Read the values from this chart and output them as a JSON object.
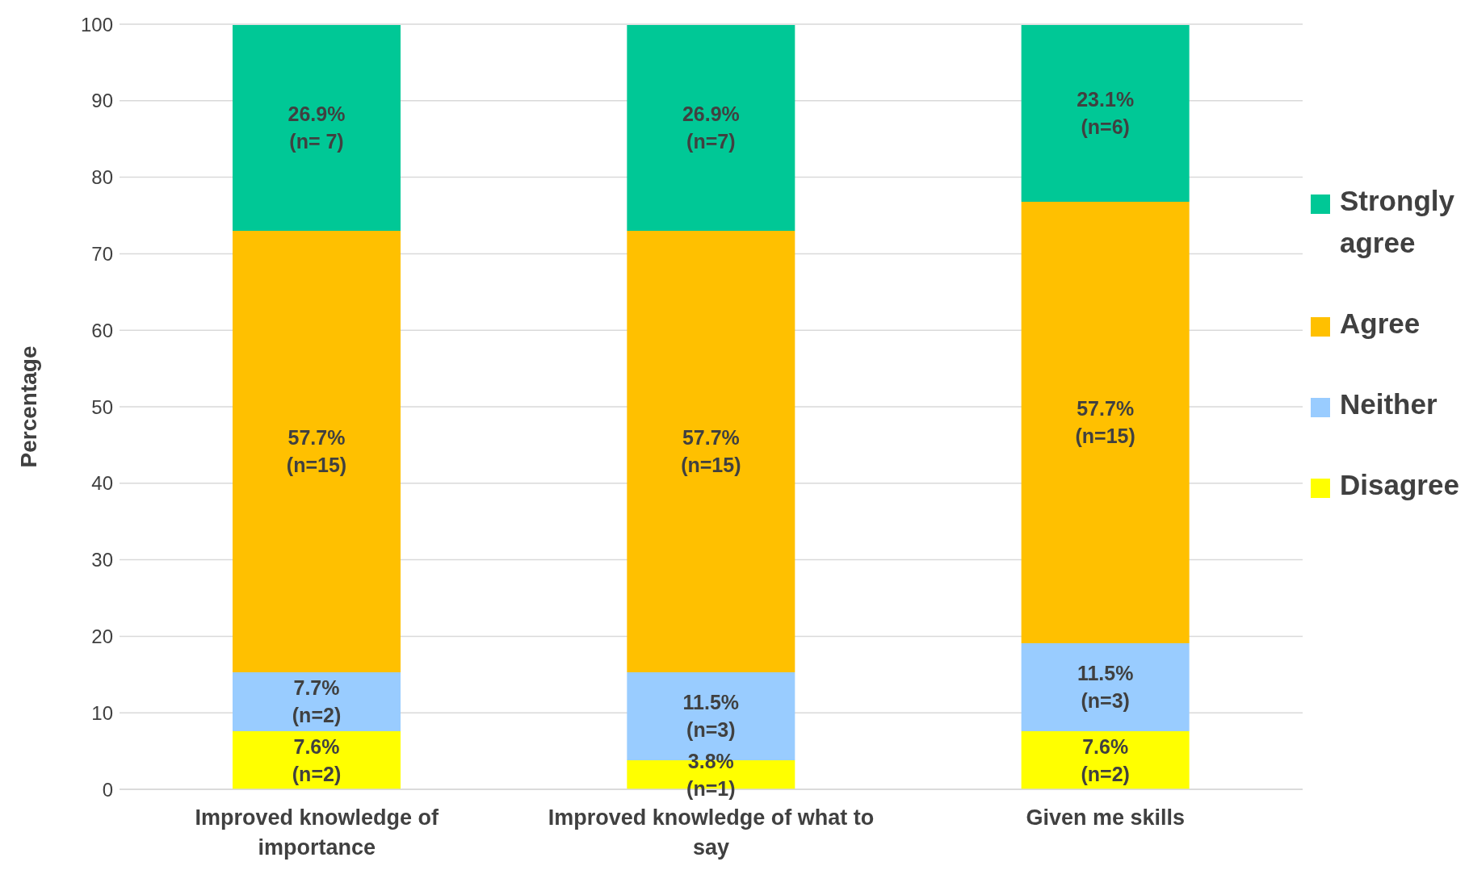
{
  "chart_data": {
    "type": "bar",
    "stacked": true,
    "ylabel": "Percentage",
    "categories": [
      "Improved knowledge of importance",
      "Improved knowledge of what to say",
      "Given me skills"
    ],
    "series": [
      {
        "name": "Disagree",
        "color": "#ffff00",
        "values": [
          7.6,
          3.8,
          7.6
        ],
        "value_labels": [
          "7.6%\n(n=2)",
          "3.8%\n(n=1)",
          "7.6%\n(n=2)"
        ]
      },
      {
        "name": "Neither",
        "color": "#99ccff",
        "values": [
          7.7,
          11.5,
          11.5
        ],
        "value_labels": [
          "7.7%\n(n=2)",
          "11.5%\n(n=3)",
          "11.5%\n(n=3)"
        ]
      },
      {
        "name": "Agree",
        "color": "#ffc000",
        "values": [
          57.7,
          57.7,
          57.7
        ],
        "value_labels": [
          "57.7%\n(n=15)",
          "57.7%\n(n=15)",
          "57.7%\n(n=15)"
        ]
      },
      {
        "name": "Strongly agree",
        "color": "#00c896",
        "values": [
          26.9,
          26.9,
          23.1
        ],
        "value_labels": [
          "26.9%\n(n= 7)",
          "26.9%\n(n=7)",
          "23.1%\n(n=6)"
        ]
      }
    ],
    "ylim": [
      0,
      100
    ],
    "yticks": [
      0,
      10,
      20,
      30,
      40,
      50,
      60,
      70,
      80,
      90,
      100
    ],
    "grid": "y",
    "legend": "right"
  }
}
